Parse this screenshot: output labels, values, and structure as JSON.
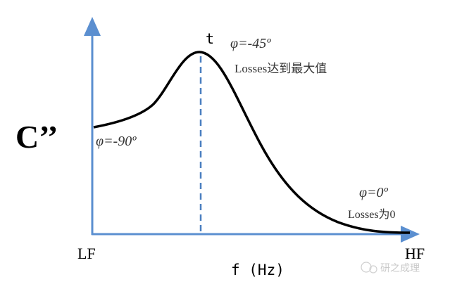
{
  "labels": {
    "y_axis": "C’’",
    "x_left": "LF",
    "x_right": "HF",
    "x_axis": "f (Hz)",
    "peak": "t",
    "phi_low": "φ=-90º",
    "phi_peak": "φ=-45º",
    "peak_note": "Losses达到最大值",
    "phi_high": "φ=0º",
    "high_note": "Losses为0"
  },
  "watermark": "研之成理",
  "colors": {
    "axis": "#5b8fd0",
    "curve": "#000000",
    "dashed": "#4a7fc0",
    "text": "#333333"
  }
}
